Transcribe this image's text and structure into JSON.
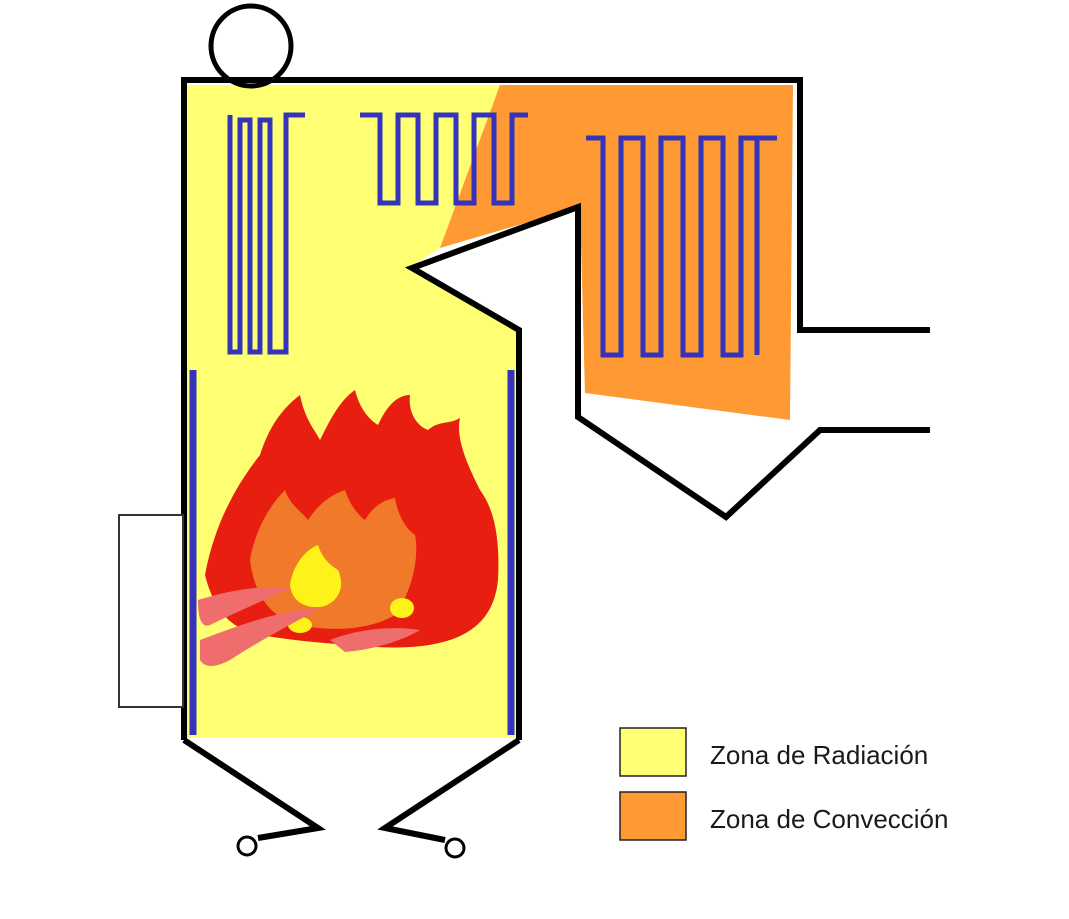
{
  "colors": {
    "radiation_zone": "#FFFF73",
    "convection_zone": "#FF9933",
    "tube_coil": "#3333BB",
    "wall": "#000000",
    "flame_red": "#E81E10",
    "flame_orange": "#F07A2A",
    "flame_yellow": "#FFF21A",
    "flame_pink": "#F06D6D"
  },
  "legend": [
    {
      "label": "Zona de Radiación",
      "color": "#FFFF73"
    },
    {
      "label": "Zona de Convección",
      "color": "#FF9933"
    }
  ],
  "icons": [
    "steam-drum-icon",
    "flame-icon",
    "burner-box-icon",
    "ash-outlet-icon"
  ]
}
